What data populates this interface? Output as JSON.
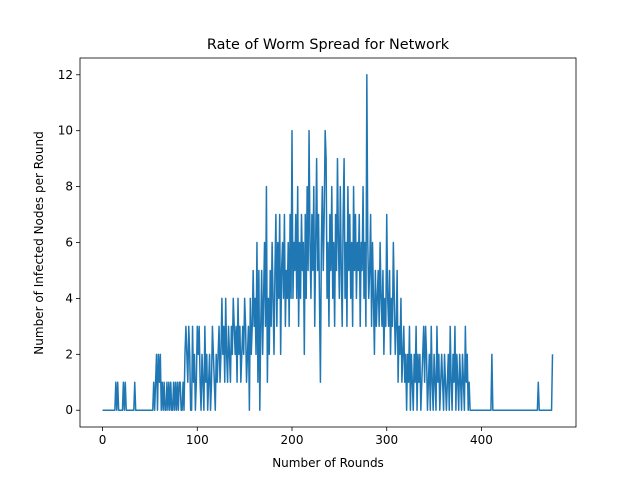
{
  "chart_data": {
    "type": "line",
    "title": "Rate of Worm Spread for Network",
    "xlabel": "Number of Rounds",
    "ylabel": "Number of Infected Nodes per Round",
    "color": "#1f77b4",
    "xlim": [
      -23.8,
      499.8
    ],
    "ylim": [
      -0.6,
      12.6
    ],
    "xticks": [
      0,
      100,
      200,
      300,
      400
    ],
    "yticks": [
      0,
      2,
      4,
      6,
      8,
      10,
      12
    ],
    "values": [
      0,
      0,
      0,
      0,
      0,
      0,
      0,
      0,
      0,
      0,
      0,
      0,
      0,
      0,
      1,
      0,
      1,
      0,
      0,
      0,
      0,
      0,
      1,
      0,
      1,
      0,
      0,
      0,
      0,
      0,
      0,
      0,
      0,
      0,
      1,
      0,
      0,
      0,
      0,
      0,
      0,
      0,
      0,
      0,
      0,
      0,
      0,
      0,
      0,
      0,
      0,
      0,
      0,
      0,
      1,
      0,
      1,
      2,
      0,
      2,
      1,
      2,
      0,
      1,
      0,
      1,
      0,
      0,
      1,
      0,
      1,
      0,
      1,
      0,
      0,
      1,
      0,
      1,
      0,
      1,
      0,
      1,
      1,
      0,
      0,
      1,
      0,
      2,
      3,
      2,
      1,
      3,
      2,
      0,
      0,
      3,
      1,
      2,
      0,
      1,
      3,
      2,
      3,
      1,
      0,
      2,
      1,
      0,
      3,
      1,
      2,
      0,
      1,
      2,
      0,
      1,
      3,
      2,
      1,
      0,
      2,
      1,
      2,
      3,
      1,
      2,
      4,
      2,
      3,
      1,
      4,
      2,
      1,
      3,
      2,
      1,
      3,
      2,
      4,
      3,
      2,
      3,
      1,
      4,
      2,
      3,
      1,
      2,
      3,
      2,
      4,
      3,
      1,
      2,
      3,
      0,
      4,
      2,
      3,
      5,
      3,
      4,
      2,
      6,
      1,
      5,
      0,
      3,
      5,
      2,
      4,
      6,
      3,
      8,
      1,
      4,
      2,
      5,
      3,
      6,
      4,
      2,
      5,
      7,
      3,
      6,
      4,
      7,
      2,
      5,
      6,
      4,
      7,
      3,
      5,
      4,
      6,
      3,
      7,
      4,
      10,
      4,
      6,
      5,
      7,
      4,
      8,
      3,
      6,
      4,
      7,
      5,
      6,
      2,
      7,
      4,
      8,
      5,
      10,
      6,
      4,
      7,
      5,
      8,
      3,
      6,
      9,
      5,
      7,
      4,
      1,
      6,
      8,
      5,
      7,
      10,
      9,
      4,
      6,
      3,
      7,
      5,
      8,
      4,
      6,
      3,
      7,
      5,
      9,
      6,
      4,
      8,
      5,
      3,
      7,
      9,
      4,
      6,
      3,
      8,
      5,
      7,
      4,
      6,
      3,
      8,
      5,
      7,
      4,
      6,
      5,
      7,
      3,
      6,
      5,
      8,
      4,
      6,
      3,
      12,
      6,
      4,
      5,
      7,
      3,
      6,
      4,
      2,
      5,
      3,
      4,
      5,
      3,
      6,
      4,
      3,
      5,
      2,
      4,
      3,
      7,
      4,
      3,
      5,
      2,
      4,
      3,
      6,
      4,
      2,
      3,
      5,
      1,
      3,
      2,
      4,
      1,
      2,
      3,
      1,
      2,
      0,
      2,
      1,
      3,
      0,
      2,
      1,
      0,
      2,
      1,
      3,
      0,
      2,
      1,
      2,
      0,
      1,
      2,
      3,
      1,
      3,
      2,
      0,
      1,
      2,
      0,
      3,
      1,
      0,
      2,
      1,
      0,
      3,
      1,
      2,
      0,
      1,
      2,
      1,
      0,
      2,
      1,
      0,
      1,
      2,
      0,
      3,
      1,
      0,
      2,
      1,
      3,
      0,
      2,
      1,
      0,
      2,
      1,
      0,
      2,
      1,
      0,
      3,
      1,
      2,
      0,
      1,
      0,
      0,
      0,
      0,
      0,
      0,
      0,
      0,
      0,
      0,
      0,
      0,
      0,
      0,
      0,
      0,
      0,
      0,
      0,
      0,
      0,
      0,
      0,
      2,
      0,
      0,
      0,
      0,
      0,
      0,
      0,
      0,
      0,
      0,
      0,
      0,
      0,
      0,
      0,
      0,
      0,
      0,
      0,
      0,
      0,
      0,
      0,
      0,
      0,
      0,
      0,
      0,
      0,
      0,
      0,
      0,
      0,
      0,
      0,
      0,
      0,
      0,
      0,
      0,
      0,
      0,
      0,
      0,
      0,
      0,
      0,
      0,
      1,
      0,
      0,
      0,
      0,
      0,
      0,
      0,
      0,
      0,
      0,
      0,
      0,
      0,
      0,
      2
    ]
  }
}
